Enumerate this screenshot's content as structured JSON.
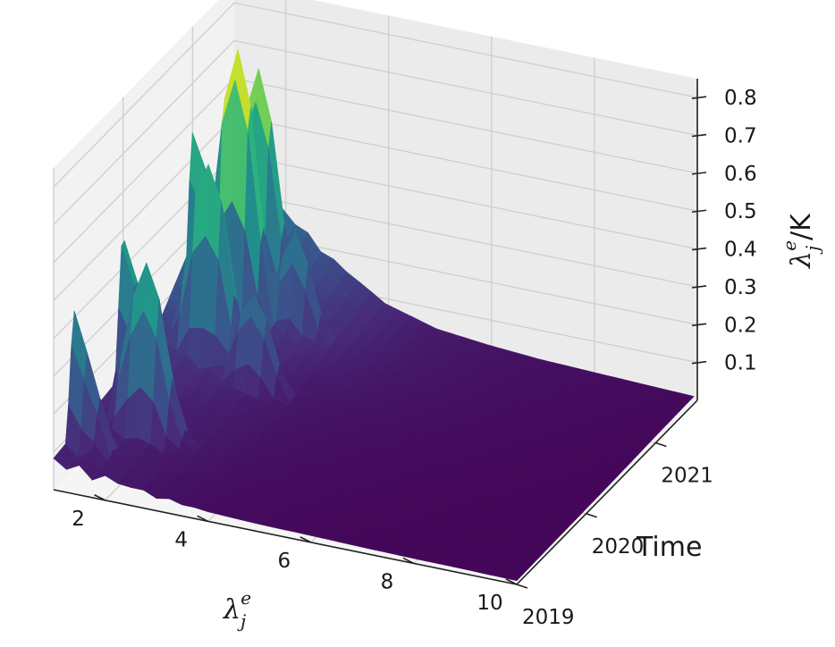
{
  "chart_data": {
    "type": "surface-3d",
    "colormap": "viridis",
    "colormap_stops": [
      "#440154",
      "#472d7b",
      "#3b528b",
      "#2c728e",
      "#21918c",
      "#28ae80",
      "#5ec962",
      "#addc30",
      "#fde725"
    ],
    "x_axis": {
      "label": "λⱼᵉ",
      "label_base": "λ",
      "label_sub": "j",
      "label_sup": "e",
      "ticks": [
        2,
        4,
        6,
        8,
        10
      ],
      "range": [
        1,
        10
      ]
    },
    "y_axis": {
      "label": "Time",
      "ticks": [
        "2019",
        "2020",
        "2021"
      ],
      "range": [
        2019,
        2021.6
      ]
    },
    "z_axis": {
      "label": "λⱼᵉ/K",
      "label_base": "λ",
      "label_sub": "j",
      "label_sup": "e",
      "label_tail": "/K",
      "ticks": [
        0.1,
        0.2,
        0.3,
        0.4,
        0.5,
        0.6,
        0.7,
        0.8
      ],
      "range": [
        0,
        0.85
      ]
    },
    "grid": true,
    "surface_profile": {
      "x_index": [
        1,
        2,
        3,
        4,
        5,
        6,
        7,
        8,
        9,
        10
      ],
      "time": [
        2019.0,
        2019.5,
        2020.0,
        2020.5,
        2021.0,
        2021.6
      ],
      "values": [
        [
          0.05,
          0.06,
          0.08,
          0.12,
          0.26,
          0.35
        ],
        [
          0.04,
          0.05,
          0.06,
          0.1,
          0.2,
          0.28
        ],
        [
          0.03,
          0.04,
          0.05,
          0.07,
          0.12,
          0.18
        ],
        [
          0.025,
          0.03,
          0.04,
          0.05,
          0.08,
          0.1
        ],
        [
          0.02,
          0.025,
          0.03,
          0.04,
          0.05,
          0.06
        ],
        [
          0.018,
          0.02,
          0.025,
          0.03,
          0.04,
          0.045
        ],
        [
          0.015,
          0.018,
          0.02,
          0.025,
          0.03,
          0.035
        ],
        [
          0.013,
          0.015,
          0.018,
          0.02,
          0.025,
          0.03
        ],
        [
          0.012,
          0.013,
          0.015,
          0.018,
          0.02,
          0.025
        ],
        [
          0.01,
          0.012,
          0.013,
          0.015,
          0.018,
          0.02
        ]
      ],
      "peaks": [
        {
          "x": 1,
          "time": 2021.0,
          "value": 0.55
        },
        {
          "x": 1,
          "time": 2020.0,
          "value": 0.45
        },
        {
          "x": 1,
          "time": 2019.3,
          "value": 0.38
        },
        {
          "x": 2,
          "time": 2020.5,
          "value": 0.62
        },
        {
          "x": 2,
          "time": 2019.6,
          "value": 0.5
        },
        {
          "x": 2,
          "time": 2021.2,
          "value": 0.72
        },
        {
          "x": 2,
          "time": 2020.9,
          "value": 0.84
        },
        {
          "x": 1,
          "time": 2021.5,
          "value": 0.48
        },
        {
          "x": 3,
          "time": 2020.4,
          "value": 0.3
        },
        {
          "x": 3,
          "time": 2021.0,
          "value": 0.35
        }
      ]
    }
  }
}
